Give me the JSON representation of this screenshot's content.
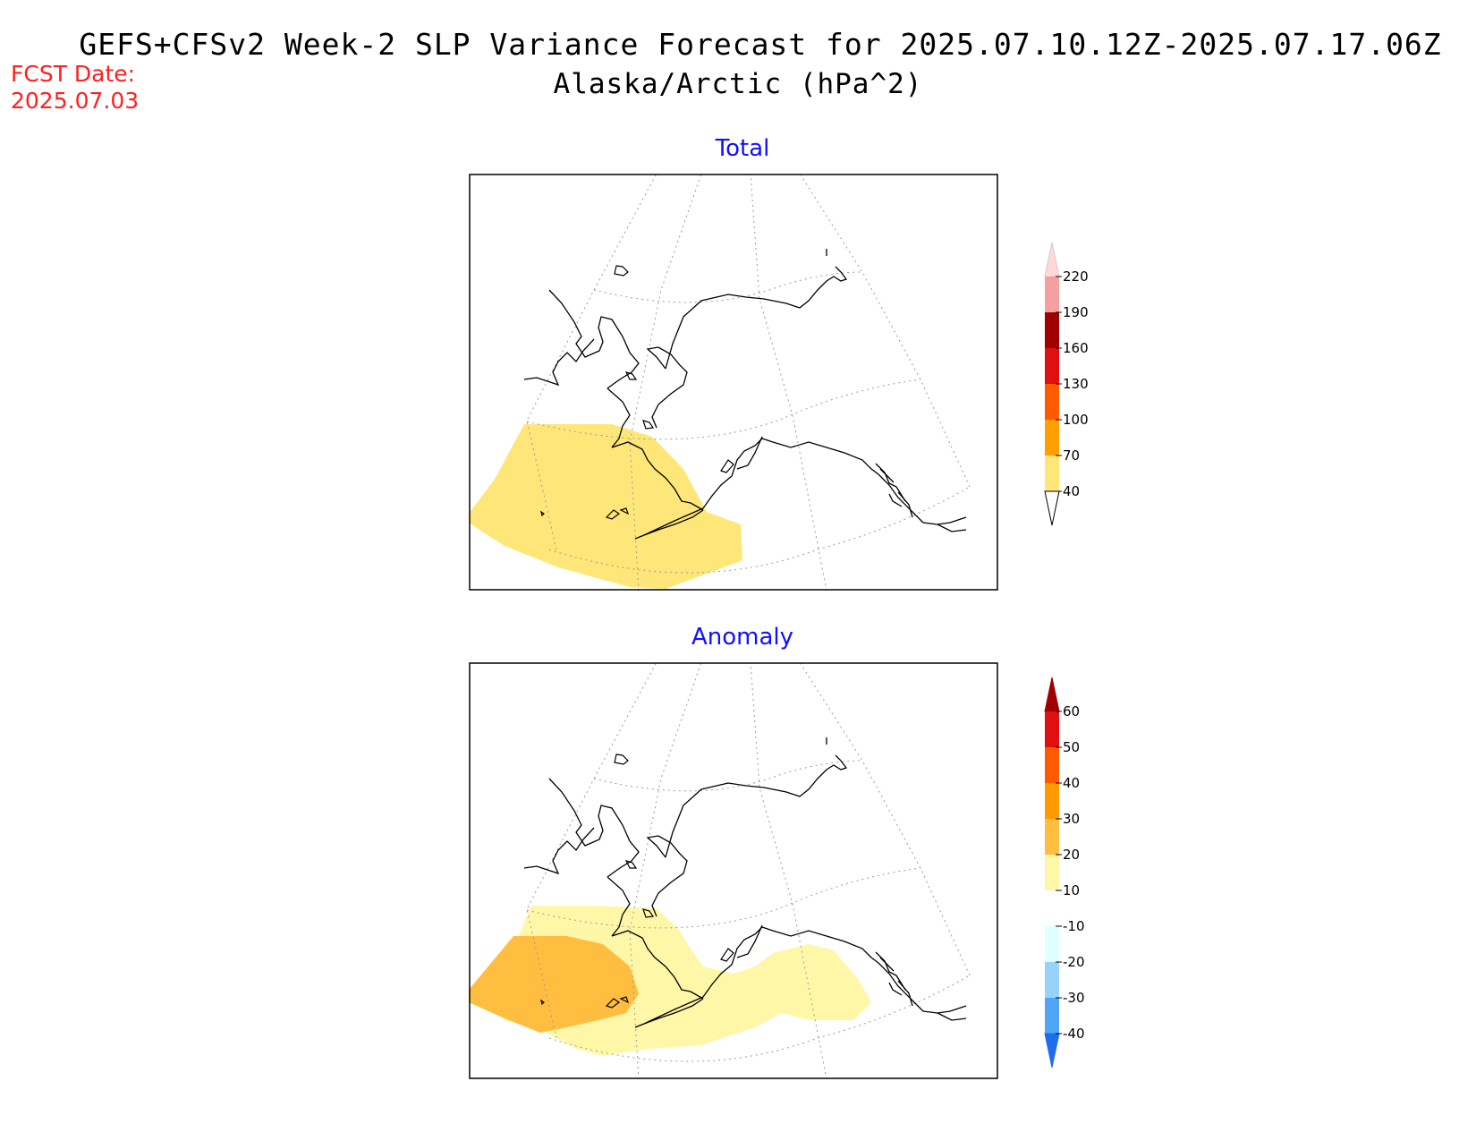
{
  "header": {
    "title": "GEFS+CFSv2 Week-2 SLP Variance Forecast for 2025.07.10.12Z-2025.07.17.06Z",
    "subtitle": "Alaska/Arctic (hPa^2)",
    "fcst_label": "FCST Date:",
    "fcst_date": "2025.07.03"
  },
  "panels": [
    {
      "title": "Total",
      "colorbar": {
        "levels": [
          "220",
          "190",
          "160",
          "130",
          "100",
          "70",
          "40"
        ],
        "colors": [
          "#ffd8d8",
          "#f4a0a0",
          "#a00000",
          "#e01010",
          "#ff5a00",
          "#ffa000",
          "#ffe678"
        ]
      }
    },
    {
      "title": "Anomaly",
      "colorbar": {
        "levels": [
          "60",
          "50",
          "40",
          "30",
          "20",
          "10",
          "-10",
          "-20",
          "-30",
          "-40"
        ],
        "colors": [
          "#a00000",
          "#e01010",
          "#ff5a00",
          "#ff9a00",
          "#ffbe40",
          "#fff7a8",
          "#ffffff",
          "#e0ffff",
          "#96d2fa",
          "#50a5f5",
          "#1e6eeb"
        ]
      }
    }
  ],
  "colors": {
    "title": "#000000",
    "fcst": "#ff2020",
    "panel_title": "#1010ff",
    "total_fill": "#ffe678",
    "anomaly_fill_light": "#fff7a8",
    "anomaly_fill_dark": "#ffbe40"
  }
}
